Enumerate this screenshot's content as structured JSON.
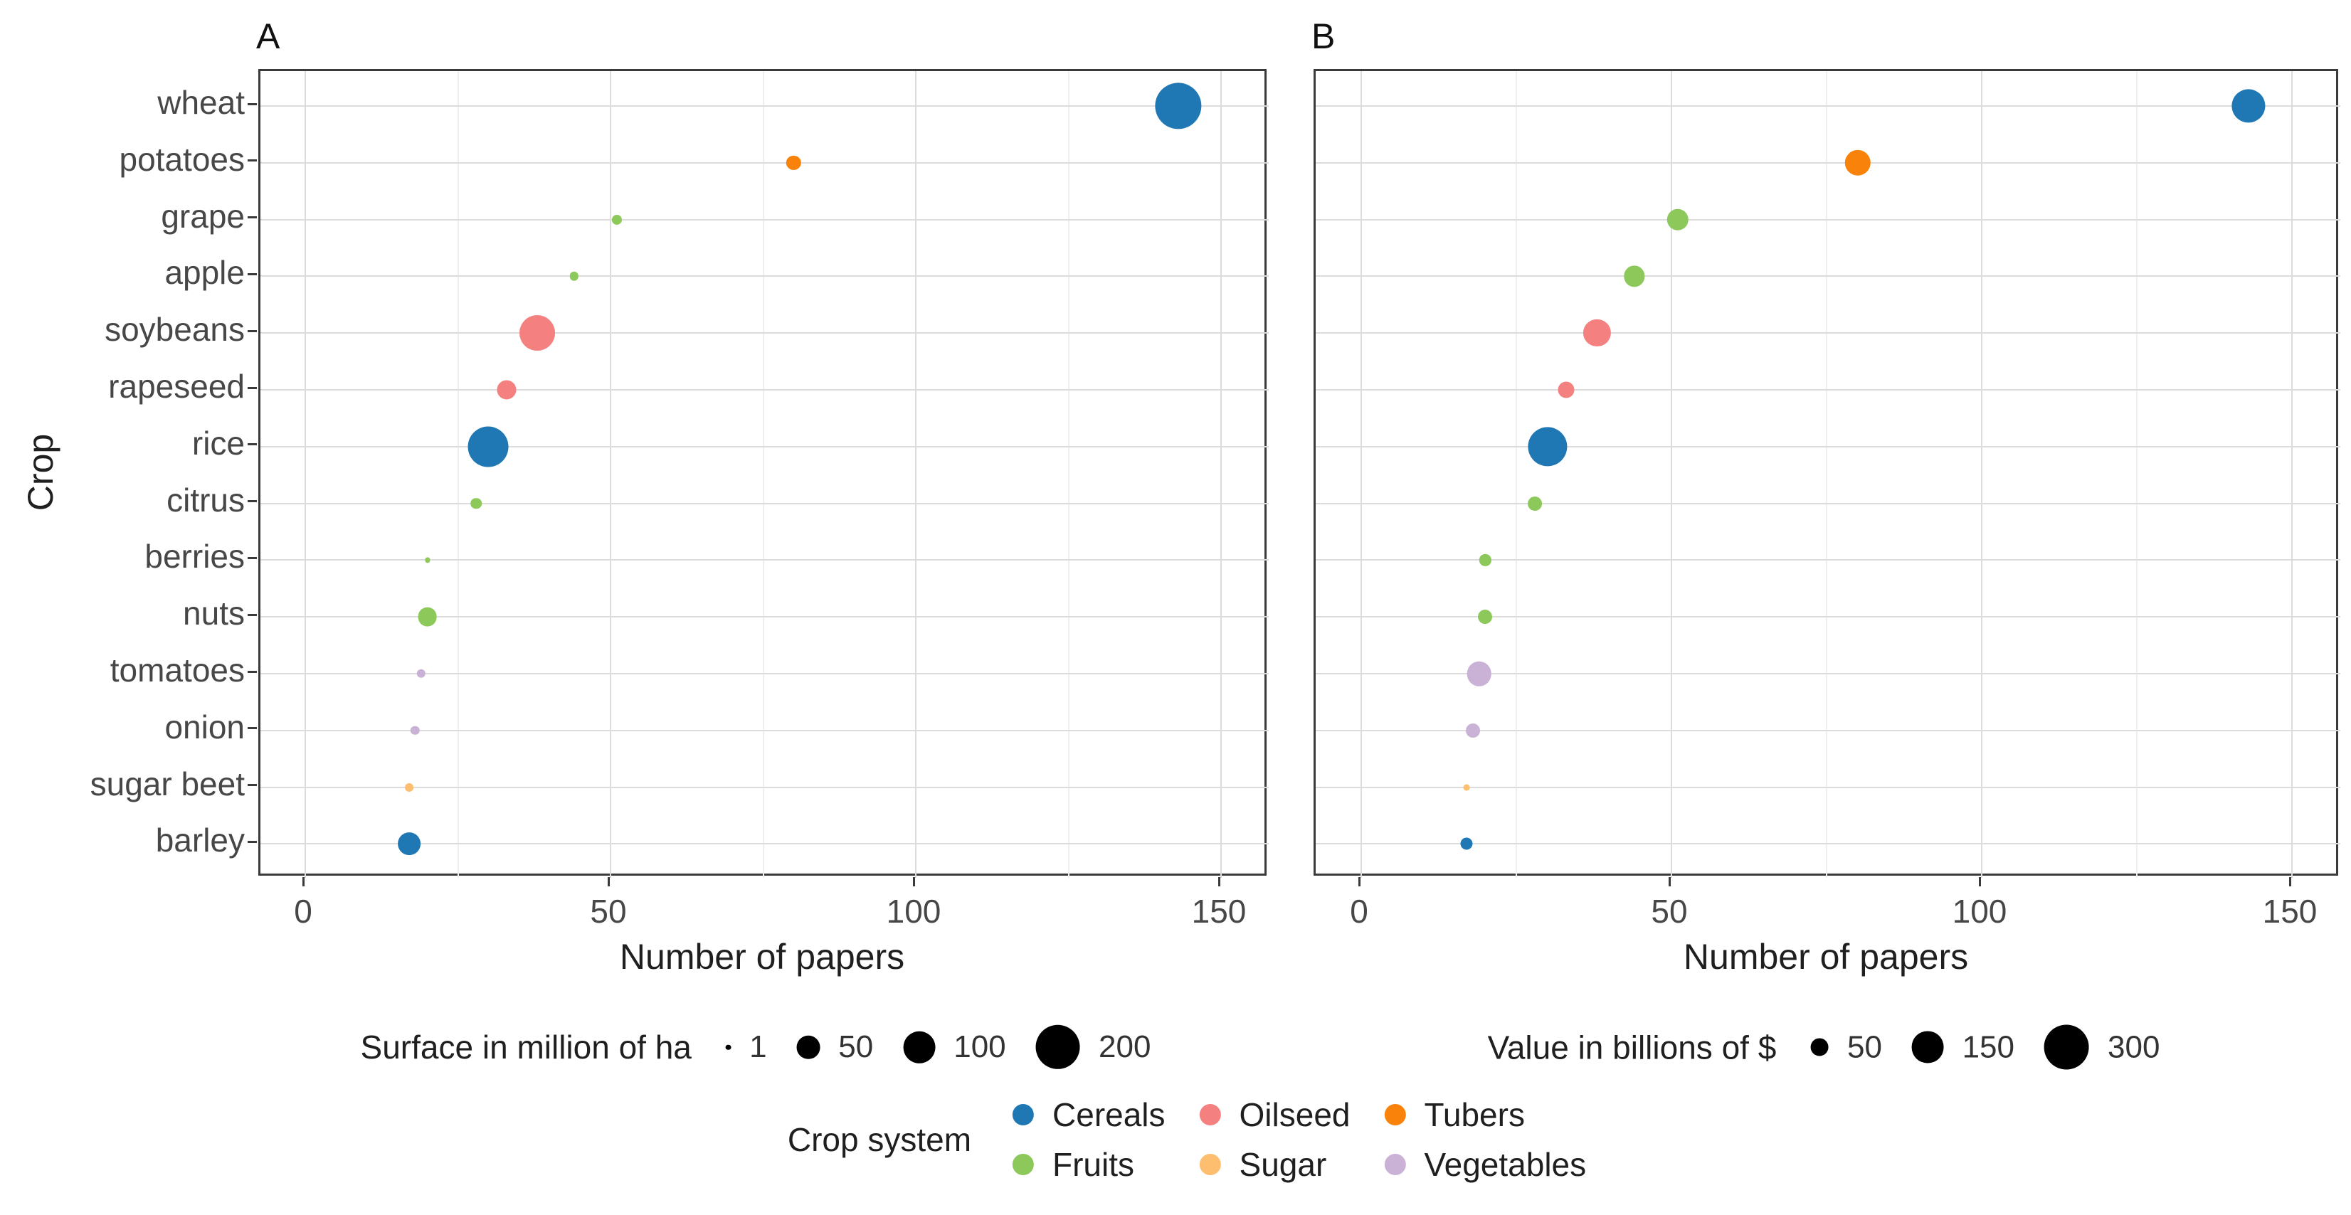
{
  "chart_data": {
    "type": "bubble",
    "title": "",
    "xlabel": "Number of papers",
    "ylabel": "Crop",
    "x_ticks": [
      0,
      50,
      100,
      150
    ],
    "x_minor_ticks": [
      25,
      75,
      125
    ],
    "x_range": [
      -7,
      157
    ],
    "legend_position": "bottom",
    "grid": "on",
    "categories": [
      "wheat",
      "potatoes",
      "grape",
      "apple",
      "soybeans",
      "rapeseed",
      "rice",
      "citrus",
      "berries",
      "nuts",
      "tomatoes",
      "onion",
      "sugar beet",
      "barley"
    ],
    "crop_systems": [
      {
        "name": "Cereals",
        "color": "#1f78b4"
      },
      {
        "name": "Fruits",
        "color": "#8cc85a"
      },
      {
        "name": "Oilseed",
        "color": "#f4807f"
      },
      {
        "name": "Sugar",
        "color": "#fdbf6f"
      },
      {
        "name": "Tubers",
        "color": "#f9820a"
      },
      {
        "name": "Vegetables",
        "color": "#cab2d6"
      }
    ],
    "crops": [
      {
        "name": "wheat",
        "system": "Cereals",
        "papers": 143,
        "surface_mha": 220,
        "value_bn_usd": 168
      },
      {
        "name": "potatoes",
        "system": "Tubers",
        "papers": 80,
        "surface_mha": 17,
        "value_bn_usd": 100
      },
      {
        "name": "grape",
        "system": "Fruits",
        "papers": 51,
        "surface_mha": 7,
        "value_bn_usd": 70
      },
      {
        "name": "apple",
        "system": "Fruits",
        "papers": 44,
        "surface_mha": 5,
        "value_bn_usd": 65
      },
      {
        "name": "soybeans",
        "system": "Oilseed",
        "papers": 38,
        "surface_mha": 125,
        "value_bn_usd": 110
      },
      {
        "name": "rapeseed",
        "system": "Oilseed",
        "papers": 33,
        "surface_mha": 33,
        "value_bn_usd": 40
      },
      {
        "name": "rice",
        "system": "Cereals",
        "papers": 30,
        "surface_mha": 165,
        "value_bn_usd": 230
      },
      {
        "name": "citrus",
        "system": "Fruits",
        "papers": 28,
        "surface_mha": 9,
        "value_bn_usd": 30
      },
      {
        "name": "berries",
        "system": "Fruits",
        "papers": 20,
        "surface_mha": 1,
        "value_bn_usd": 20
      },
      {
        "name": "nuts",
        "system": "Fruits",
        "papers": 20,
        "surface_mha": 32,
        "value_bn_usd": 30
      },
      {
        "name": "tomatoes",
        "system": "Vegetables",
        "papers": 19,
        "surface_mha": 5,
        "value_bn_usd": 90
      },
      {
        "name": "onion",
        "system": "Vegetables",
        "papers": 18,
        "surface_mha": 5,
        "value_bn_usd": 30
      },
      {
        "name": "sugar beet",
        "system": "Sugar",
        "papers": 17,
        "surface_mha": 4.5,
        "value_bn_usd": 6
      },
      {
        "name": "barley",
        "system": "Cereals",
        "papers": 17,
        "surface_mha": 47,
        "value_bn_usd": 22
      }
    ],
    "panels": [
      {
        "tag": "A",
        "size_field": "surface_mha",
        "size_legend_title": "Surface in million of ha",
        "size_legend_breaks": [
          1,
          50,
          100,
          200
        ]
      },
      {
        "tag": "B",
        "size_field": "value_bn_usd",
        "size_legend_title": "Value in billions of $",
        "size_legend_breaks": [
          50,
          150,
          300
        ]
      }
    ],
    "system_legend_title": "Crop system",
    "system_legend_columns": [
      [
        "Cereals",
        "Fruits"
      ],
      [
        "Oilseed",
        "Sugar"
      ],
      [
        "Tubers",
        "Vegetables"
      ]
    ]
  }
}
